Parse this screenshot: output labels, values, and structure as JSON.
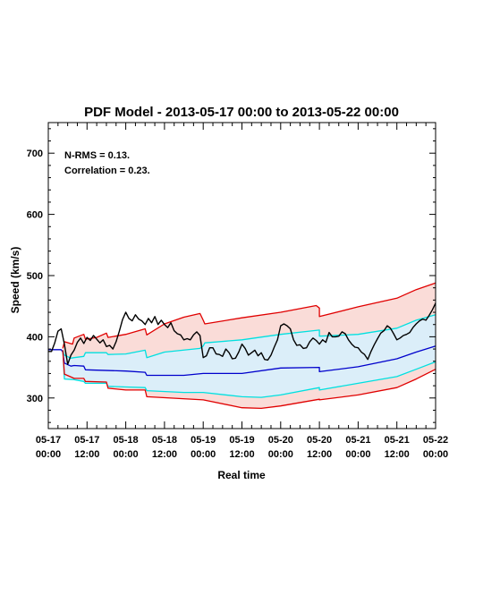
{
  "chart_data": {
    "type": "line",
    "title": "PDF Model - 2013-05-17 00:00 to 2013-05-22 00:00",
    "xlabel": "Real time",
    "ylabel": "Speed (km/s)",
    "xlim_hours": [
      0,
      120
    ],
    "ylim": [
      250,
      750
    ],
    "y_ticks": [
      300,
      400,
      500,
      600,
      700
    ],
    "x_ticks": [
      {
        "hour": 0,
        "date": "05-17",
        "time": "00:00"
      },
      {
        "hour": 12,
        "date": "05-17",
        "time": "12:00"
      },
      {
        "hour": 24,
        "date": "05-18",
        "time": "00:00"
      },
      {
        "hour": 36,
        "date": "05-18",
        "time": "12:00"
      },
      {
        "hour": 48,
        "date": "05-19",
        "time": "00:00"
      },
      {
        "hour": 60,
        "date": "05-19",
        "time": "12:00"
      },
      {
        "hour": 72,
        "date": "05-20",
        "time": "00:00"
      },
      {
        "hour": 84,
        "date": "05-20",
        "time": "12:00"
      },
      {
        "hour": 96,
        "date": "05-21",
        "time": "00:00"
      },
      {
        "hour": 108,
        "date": "05-21",
        "time": "12:00"
      },
      {
        "hour": 120,
        "date": "05-22",
        "time": "00:00"
      }
    ],
    "annotations": [
      "N-RMS = 0.13.",
      "Correlation = 0.23."
    ],
    "grid": false,
    "series": [
      {
        "color": "#e00000",
        "points": [
          [
            4.5,
            381
          ],
          [
            5,
            392
          ],
          [
            7.5,
            388
          ],
          [
            8,
            398
          ],
          [
            11,
            404
          ],
          [
            11.5,
            396
          ],
          [
            15,
            399
          ],
          [
            18,
            406
          ],
          [
            18.5,
            399
          ],
          [
            24,
            404
          ],
          [
            30,
            413
          ],
          [
            30.5,
            403
          ],
          [
            36,
            421
          ],
          [
            42,
            432
          ],
          [
            47,
            438
          ],
          [
            48,
            427
          ],
          [
            48.5,
            421
          ],
          [
            60,
            431
          ],
          [
            72,
            440
          ],
          [
            83,
            451
          ],
          [
            84,
            447
          ],
          [
            84,
            433
          ],
          [
            96,
            449
          ],
          [
            108,
            463
          ],
          [
            114,
            477
          ],
          [
            120,
            488
          ]
        ]
      },
      {
        "color": "#00e0e0",
        "points": [
          [
            4.5,
            378
          ],
          [
            5,
            370
          ],
          [
            7,
            365
          ],
          [
            8,
            366
          ],
          [
            11,
            368
          ],
          [
            11.5,
            374
          ],
          [
            18,
            374
          ],
          [
            18.5,
            371
          ],
          [
            24,
            372
          ],
          [
            30,
            378
          ],
          [
            30.5,
            366
          ],
          [
            36,
            375
          ],
          [
            47,
            381
          ],
          [
            48,
            385
          ],
          [
            48.5,
            390
          ],
          [
            60,
            395
          ],
          [
            72,
            404
          ],
          [
            84,
            411
          ],
          [
            84,
            401
          ],
          [
            96,
            404
          ],
          [
            108,
            414
          ],
          [
            114,
            427
          ],
          [
            120,
            436
          ]
        ]
      },
      {
        "color": "#0000cc",
        "points": [
          [
            0,
            379
          ],
          [
            4,
            379
          ],
          [
            4.5,
            375
          ],
          [
            5,
            357
          ],
          [
            7,
            352
          ],
          [
            8,
            353
          ],
          [
            11,
            352
          ],
          [
            11.5,
            346
          ],
          [
            24,
            344
          ],
          [
            30,
            342
          ],
          [
            30.5,
            337
          ],
          [
            42,
            337
          ],
          [
            48,
            340
          ],
          [
            60,
            340
          ],
          [
            72,
            349
          ],
          [
            84,
            350
          ],
          [
            84,
            343
          ],
          [
            96,
            351
          ],
          [
            108,
            364
          ],
          [
            114,
            375
          ],
          [
            120,
            385
          ]
        ]
      },
      {
        "color": "#00e0e0",
        "points": [
          [
            4.5,
            378
          ],
          [
            5,
            331
          ],
          [
            8,
            330
          ],
          [
            11,
            327
          ],
          [
            11.5,
            324
          ],
          [
            18,
            324
          ],
          [
            18.5,
            319
          ],
          [
            24,
            318
          ],
          [
            30,
            317
          ],
          [
            30.5,
            312
          ],
          [
            42,
            309
          ],
          [
            48,
            309
          ],
          [
            60,
            302
          ],
          [
            66,
            301
          ],
          [
            72,
            305
          ],
          [
            84,
            317
          ],
          [
            84,
            313
          ],
          [
            96,
            324
          ],
          [
            108,
            335
          ],
          [
            114,
            347
          ],
          [
            120,
            359
          ]
        ]
      },
      {
        "color": "#e00000",
        "points": [
          [
            4.5,
            378
          ],
          [
            5,
            339
          ],
          [
            8,
            332
          ],
          [
            11,
            332
          ],
          [
            11.5,
            327
          ],
          [
            18,
            326
          ],
          [
            18.5,
            316
          ],
          [
            24,
            313
          ],
          [
            30,
            313
          ],
          [
            30.5,
            302
          ],
          [
            48,
            297
          ],
          [
            60,
            284
          ],
          [
            66,
            283
          ],
          [
            72,
            287
          ],
          [
            84,
            298
          ],
          [
            84,
            297
          ],
          [
            96,
            305
          ],
          [
            108,
            317
          ],
          [
            114,
            331
          ],
          [
            120,
            347
          ]
        ]
      },
      {
        "color": "#000000",
        "points": [
          [
            0,
            376
          ],
          [
            1,
            376
          ],
          [
            2,
            390
          ],
          [
            3,
            409
          ],
          [
            4,
            413
          ],
          [
            5,
            388
          ],
          [
            6,
            355
          ],
          [
            7,
            370
          ],
          [
            8,
            378
          ],
          [
            9,
            391
          ],
          [
            10,
            398
          ],
          [
            11,
            389
          ],
          [
            12,
            399
          ],
          [
            13,
            394
          ],
          [
            14,
            402
          ],
          [
            15,
            396
          ],
          [
            16,
            390
          ],
          [
            17,
            395
          ],
          [
            18,
            384
          ],
          [
            19,
            386
          ],
          [
            20,
            380
          ],
          [
            21,
            392
          ],
          [
            22,
            409
          ],
          [
            23,
            428
          ],
          [
            24,
            440
          ],
          [
            25,
            430
          ],
          [
            26,
            426
          ],
          [
            27,
            436
          ],
          [
            28,
            429
          ],
          [
            29,
            426
          ],
          [
            30,
            420
          ],
          [
            31,
            430
          ],
          [
            32,
            423
          ],
          [
            33,
            433
          ],
          [
            34,
            420
          ],
          [
            35,
            427
          ],
          [
            36,
            420
          ],
          [
            37,
            415
          ],
          [
            38,
            423
          ],
          [
            39,
            410
          ],
          [
            40,
            405
          ],
          [
            41,
            403
          ],
          [
            42,
            395
          ],
          [
            43,
            397
          ],
          [
            44,
            395
          ],
          [
            45,
            403
          ],
          [
            46,
            408
          ],
          [
            47,
            402
          ],
          [
            48,
            366
          ],
          [
            49,
            369
          ],
          [
            50,
            382
          ],
          [
            51,
            382
          ],
          [
            52,
            372
          ],
          [
            53,
            371
          ],
          [
            54,
            368
          ],
          [
            55,
            380
          ],
          [
            56,
            374
          ],
          [
            57,
            364
          ],
          [
            58,
            365
          ],
          [
            59,
            375
          ],
          [
            60,
            388
          ],
          [
            61,
            381
          ],
          [
            62,
            370
          ],
          [
            63,
            374
          ],
          [
            64,
            378
          ],
          [
            65,
            369
          ],
          [
            66,
            374
          ],
          [
            67,
            363
          ],
          [
            68,
            362
          ],
          [
            69,
            370
          ],
          [
            70,
            383
          ],
          [
            71,
            395
          ],
          [
            72,
            418
          ],
          [
            73,
            421
          ],
          [
            74,
            418
          ],
          [
            75,
            413
          ],
          [
            76,
            395
          ],
          [
            77,
            386
          ],
          [
            78,
            387
          ],
          [
            79,
            381
          ],
          [
            80,
            382
          ],
          [
            81,
            392
          ],
          [
            82,
            398
          ],
          [
            83,
            394
          ],
          [
            84,
            388
          ],
          [
            85,
            395
          ],
          [
            86,
            391
          ],
          [
            87,
            407
          ],
          [
            88,
            400
          ],
          [
            89,
            400
          ],
          [
            90,
            401
          ],
          [
            91,
            408
          ],
          [
            92,
            405
          ],
          [
            93,
            395
          ],
          [
            94,
            388
          ],
          [
            95,
            383
          ],
          [
            96,
            382
          ],
          [
            97,
            375
          ],
          [
            98,
            371
          ],
          [
            99,
            363
          ],
          [
            100,
            376
          ],
          [
            101,
            387
          ],
          [
            102,
            397
          ],
          [
            103,
            406
          ],
          [
            104,
            410
          ],
          [
            105,
            418
          ],
          [
            106,
            414
          ],
          [
            107,
            405
          ],
          [
            108,
            395
          ],
          [
            109,
            398
          ],
          [
            110,
            402
          ],
          [
            111,
            404
          ],
          [
            112,
            407
          ],
          [
            113,
            415
          ],
          [
            114,
            421
          ],
          [
            115,
            426
          ],
          [
            116,
            429
          ],
          [
            117,
            427
          ],
          [
            118,
            435
          ],
          [
            119,
            444
          ],
          [
            120,
            455
          ]
        ]
      }
    ]
  }
}
